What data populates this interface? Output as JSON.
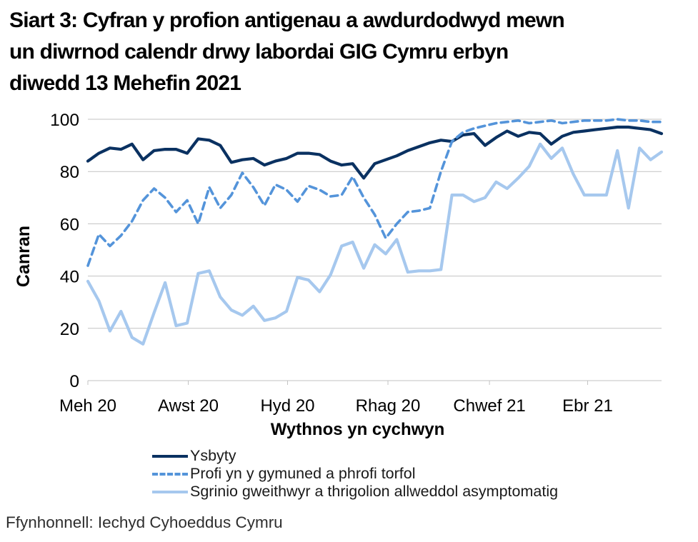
{
  "title": {
    "lines": [
      "Siart 3: Cyfran y profion antigenau a awdurdodwyd mewn",
      "un diwrnod calendr drwy labordai GIG Cymru erbyn",
      "diwedd 13 Mehefin 2021"
    ]
  },
  "footer": {
    "source": "Ffynhonnell: Iechyd Cyhoeddus Cymru"
  },
  "chart_data": {
    "type": "line",
    "title": "Siart 3: Cyfran y profion antigenau a awdurdodwyd mewn un diwrnod calendr drwy labordai GIG Cymru erbyn diwedd 13 Mehefin 2021",
    "xlabel": "Wythnos yn cychwyn",
    "ylabel": "Canran",
    "ylim": [
      0,
      100
    ],
    "y_ticks": [
      0,
      20,
      40,
      60,
      80,
      100
    ],
    "x_tick_labels": [
      "Meh 20",
      "Awst 20",
      "Hyd 20",
      "Rhag 20",
      "Chwef 21",
      "Ebr 21"
    ],
    "x_tick_weeks": [
      0,
      9.1,
      18.1,
      27.2,
      36.4,
      45.3
    ],
    "n_weeks": 53,
    "grid": "horizontal",
    "gridline_color": "#c3c3c3",
    "legend_position": "bottom-left",
    "series": [
      {
        "name": "Ysbyty",
        "color": "#0a3161",
        "style": "solid",
        "values": [
          84,
          87,
          89,
          88.5,
          90.5,
          84.5,
          88,
          88.5,
          88.5,
          87,
          92.5,
          92,
          90,
          83.5,
          84.5,
          85,
          82.5,
          84,
          85,
          87,
          87,
          86.5,
          84,
          82.5,
          83,
          77.5,
          83,
          84.5,
          86,
          88,
          89.5,
          91,
          92,
          91.5,
          94,
          94.5,
          90,
          93,
          95.5,
          93.5,
          95,
          94.5,
          90.5,
          93.5,
          95,
          95.5,
          96,
          96.5,
          97,
          97,
          96.5,
          96,
          94.5
        ]
      },
      {
        "name": "Profi yn y gymuned a phrofi torfol",
        "color": "#5494da",
        "style": "dashed",
        "values": [
          44,
          56,
          51.5,
          55.5,
          61,
          69,
          73.5,
          70,
          64.5,
          69,
          60,
          74,
          66,
          71,
          79.5,
          74,
          67,
          75,
          73,
          68.5,
          74.5,
          73,
          70.5,
          71,
          78,
          70,
          63.5,
          54.5,
          60,
          64.5,
          65,
          66,
          80,
          91.5,
          95,
          96.5,
          97.5,
          98.5,
          99,
          99.5,
          98.5,
          99,
          99.5,
          98.5,
          99,
          99.5,
          99.5,
          99.5,
          100,
          99.5,
          99.5,
          99,
          99
        ]
      },
      {
        "name": "Sgrinio gweithwyr a thrigolion allweddol asymptomatig",
        "color": "#a6c8ee",
        "style": "solid",
        "values": [
          38,
          30.5,
          19,
          26.5,
          16.5,
          14,
          26,
          37.5,
          21,
          22,
          41,
          42,
          32,
          27,
          25,
          28.5,
          23,
          24,
          26.5,
          39.5,
          38.5,
          34,
          40.5,
          51.5,
          53,
          43,
          52,
          48.5,
          54,
          41.5,
          42,
          42,
          42.5,
          71,
          71,
          68.5,
          70,
          76,
          73.5,
          77.5,
          82,
          90.5,
          85,
          89,
          79,
          71,
          71,
          71,
          88,
          66,
          89,
          84.5,
          87.5
        ]
      }
    ]
  }
}
